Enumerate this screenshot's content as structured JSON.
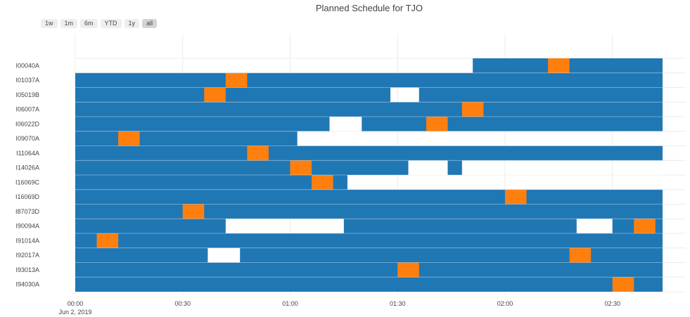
{
  "chart_data": {
    "type": "gantt",
    "title": "Planned Schedule for TJO",
    "x_axis": {
      "range_start": "2019-06-02 00:00",
      "range_end": "2019-06-02 02:44",
      "ticks": [
        "00:00",
        "00:30",
        "01:00",
        "01:30",
        "02:00",
        "02:30"
      ],
      "date_label": "Jun 2, 2019",
      "grid": true
    },
    "colors": {
      "scheduled": "#1f77b4",
      "observation": "#ff7f0e",
      "gap": "#ffffff"
    },
    "targets": [
      {
        "name": "I00040A",
        "bars": [
          [
            "01:51",
            "02:44"
          ]
        ],
        "marks": [
          [
            "02:12",
            "02:18"
          ]
        ]
      },
      {
        "name": "I01037A",
        "bars": [
          [
            "00:00",
            "02:44"
          ]
        ],
        "marks": [
          [
            "00:42",
            "00:48"
          ]
        ]
      },
      {
        "name": "I05019B",
        "bars": [
          [
            "00:00",
            "01:28"
          ],
          [
            "01:36",
            "02:44"
          ]
        ],
        "marks": [
          [
            "00:36",
            "00:42"
          ]
        ]
      },
      {
        "name": "I06007A",
        "bars": [
          [
            "00:00",
            "02:44"
          ]
        ],
        "marks": [
          [
            "01:48",
            "01:54"
          ]
        ]
      },
      {
        "name": "I06022D",
        "bars": [
          [
            "00:00",
            "01:11"
          ],
          [
            "01:20",
            "02:44"
          ]
        ],
        "marks": [
          [
            "01:38",
            "01:44"
          ]
        ]
      },
      {
        "name": "I09070A",
        "bars": [
          [
            "00:00",
            "01:02"
          ]
        ],
        "marks": [
          [
            "00:12",
            "00:18"
          ]
        ]
      },
      {
        "name": "I11064A",
        "bars": [
          [
            "00:00",
            "02:44"
          ]
        ],
        "marks": [
          [
            "00:48",
            "00:54"
          ]
        ]
      },
      {
        "name": "I14026A",
        "bars": [
          [
            "00:00",
            "01:33"
          ],
          [
            "01:44",
            "01:48"
          ]
        ],
        "marks": [
          [
            "01:00",
            "01:06"
          ]
        ]
      },
      {
        "name": "I16069C",
        "bars": [
          [
            "00:00",
            "01:16"
          ]
        ],
        "marks": [
          [
            "01:06",
            "01:12"
          ]
        ]
      },
      {
        "name": "I16069D",
        "bars": [
          [
            "00:00",
            "02:44"
          ]
        ],
        "marks": [
          [
            "02:00",
            "02:06"
          ]
        ]
      },
      {
        "name": "I87073D",
        "bars": [
          [
            "00:00",
            "02:44"
          ]
        ],
        "marks": [
          [
            "00:30",
            "00:36"
          ]
        ]
      },
      {
        "name": "I90094A",
        "bars": [
          [
            "00:00",
            "00:42"
          ],
          [
            "01:15",
            "02:20"
          ],
          [
            "02:30",
            "02:44"
          ]
        ],
        "marks": [
          [
            "02:36",
            "02:42"
          ]
        ]
      },
      {
        "name": "I91014A",
        "bars": [
          [
            "00:00",
            "02:44"
          ]
        ],
        "marks": [
          [
            "00:06",
            "00:12"
          ]
        ]
      },
      {
        "name": "I92017A",
        "bars": [
          [
            "00:00",
            "00:37"
          ],
          [
            "00:46",
            "02:44"
          ]
        ],
        "marks": [
          [
            "02:18",
            "02:24"
          ]
        ]
      },
      {
        "name": "I93013A",
        "bars": [
          [
            "00:00",
            "02:44"
          ]
        ],
        "marks": [
          [
            "01:30",
            "01:36"
          ]
        ]
      },
      {
        "name": "I94030A",
        "bars": [
          [
            "00:00",
            "02:44"
          ]
        ],
        "marks": [
          [
            "02:30",
            "02:36"
          ]
        ]
      }
    ]
  },
  "range_buttons": [
    "1w",
    "1m",
    "6m",
    "YTD",
    "1y",
    "all"
  ],
  "active_range": "all"
}
